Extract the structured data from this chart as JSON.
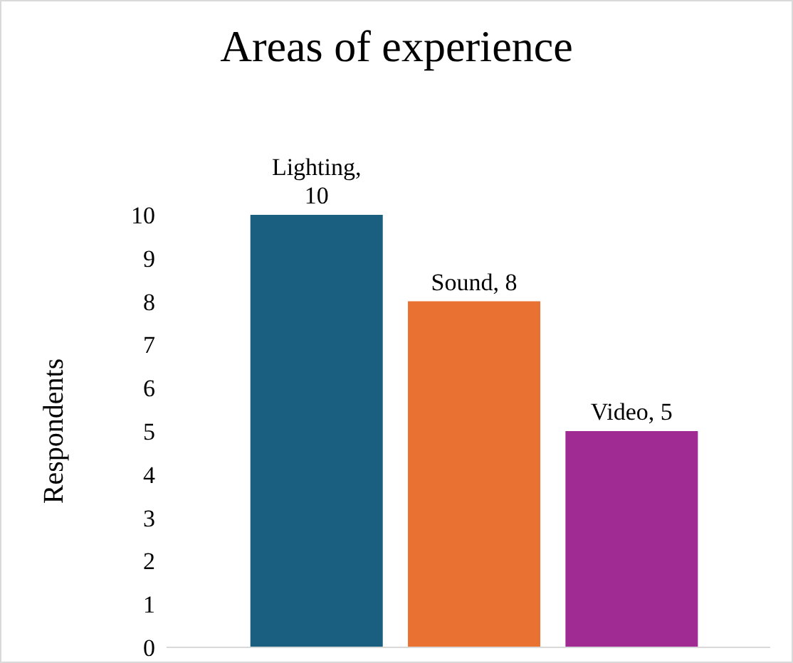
{
  "chart_data": {
    "type": "bar",
    "title": "Areas of experience",
    "ylabel": "Respondents",
    "categories": [
      null,
      null,
      null
    ],
    "values": [
      10,
      8,
      5
    ],
    "colors": [
      "#1b5f80",
      "#e97132",
      "#a02b93"
    ],
    "value_labels": [
      "Lighting, 10",
      "Sound, 8",
      "Video, 5"
    ],
    "ylim": [
      0,
      10
    ],
    "yticks": [
      0,
      1,
      2,
      3,
      4,
      5,
      6,
      7,
      8,
      9,
      10
    ],
    "tick_labels": "y",
    "grid": false,
    "legend": false
  }
}
